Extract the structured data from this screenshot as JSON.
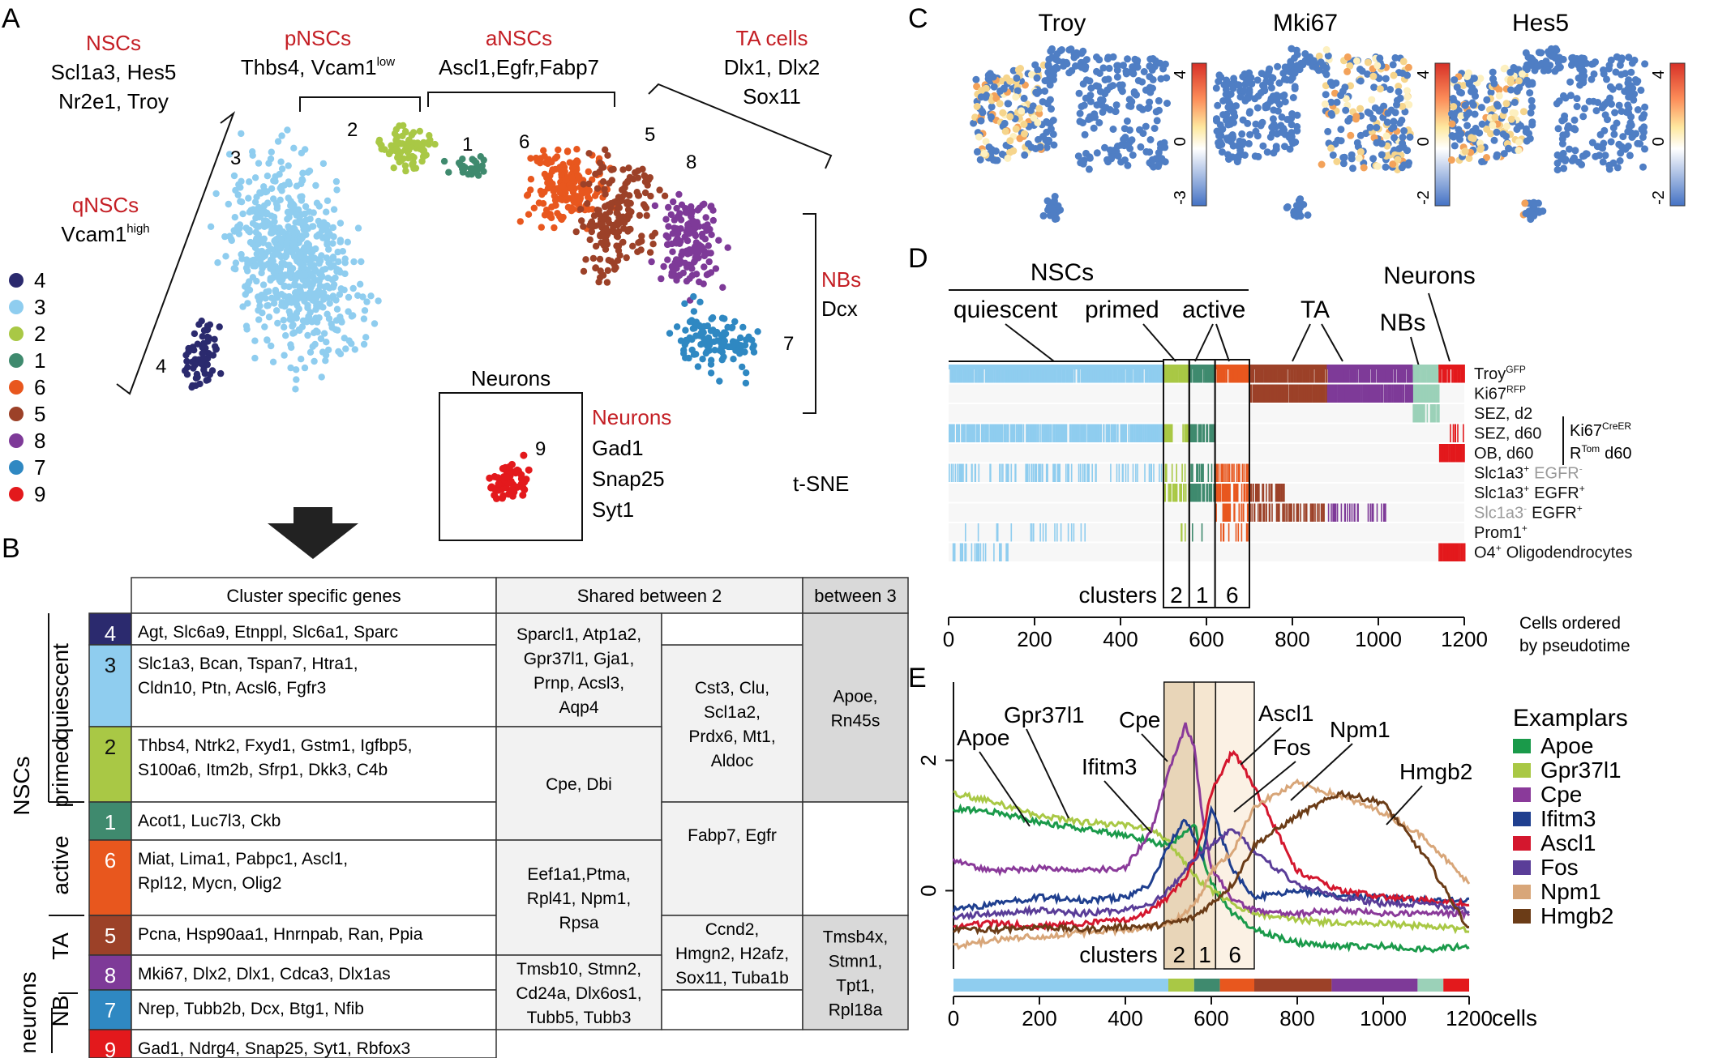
{
  "panels": {
    "A": "A",
    "B": "B",
    "C": "C",
    "D": "D",
    "E": "E"
  },
  "colors": {
    "c4": "#2b2a6e",
    "c3": "#8fcdef",
    "c2": "#a9c845",
    "c1": "#3f8a6e",
    "c6": "#e8571e",
    "c5": "#9c4128",
    "c8": "#7e3a98",
    "c7": "#2f88c2",
    "c9": "#e3191c",
    "red_label": "#c41e24",
    "tsne_blue": "#4472c4"
  },
  "panelA": {
    "cluster_legend": [
      {
        "id": "4",
        "color": "#2b2a6e"
      },
      {
        "id": "3",
        "color": "#8fcdef"
      },
      {
        "id": "2",
        "color": "#a9c845"
      },
      {
        "id": "1",
        "color": "#3f8a6e"
      },
      {
        "id": "6",
        "color": "#e8571e"
      },
      {
        "id": "5",
        "color": "#9c4128"
      },
      {
        "id": "8",
        "color": "#7e3a98"
      },
      {
        "id": "7",
        "color": "#2f88c2"
      },
      {
        "id": "9",
        "color": "#e3191c"
      }
    ],
    "groups": {
      "nscs": {
        "title": "NSCs",
        "genes": [
          "Scl1a3, Hes5",
          "Nr2e1, Troy"
        ]
      },
      "pnscs": {
        "title": "pNSCs",
        "genes": "Thbs4, Vcam1",
        "sup": "low"
      },
      "anscs": {
        "title": "aNSCs",
        "genes": "Ascl1,Egfr,Fabp7"
      },
      "ta": {
        "title": "TA cells",
        "genes": [
          "Dlx1, Dlx2",
          "Sox11"
        ]
      },
      "qnscs": {
        "title": "qNSCs",
        "genes": "Vcam1",
        "sup": "high"
      },
      "nbs": {
        "title": "NBs",
        "genes": "Dcx"
      },
      "neurons": {
        "title": "Neurons",
        "genes": [
          "Gad1",
          "Snap25",
          "Syt1"
        ]
      }
    },
    "inset_title": "Neurons",
    "tsne_label": "t-SNE",
    "cluster_numbers": [
      "3",
      "2",
      "1",
      "6",
      "5",
      "8",
      "4",
      "7",
      "9"
    ]
  },
  "panelB": {
    "headers": {
      "specific": "Cluster specific genes",
      "shared2": "Shared between 2",
      "shared3": "between 3"
    },
    "group_labels": {
      "quiescent": "quiescent",
      "primed": "primed",
      "active": "active",
      "nscs": "NSCs",
      "ta": "TA",
      "nb": "NB",
      "neurons": "neurons"
    },
    "rows": [
      {
        "id": "4",
        "genes": [
          "Agt, Slc6a9, Etnppl, Slc6a1, Sparc"
        ]
      },
      {
        "id": "3",
        "genes": [
          "Slc1a3, Bcan, Tspan7, Htra1,",
          "Cldn10, Ptn, Acsl6, Fgfr3"
        ]
      },
      {
        "id": "2",
        "genes": [
          "Thbs4, Ntrk2, Fxyd1, Gstm1, Igfbp5,",
          "S100a6, Itm2b, Sfrp1, Dkk3, C4b"
        ]
      },
      {
        "id": "1",
        "genes": [
          "Acot1, Luc7l3, Ckb"
        ]
      },
      {
        "id": "6",
        "genes": [
          "Miat, Lima1, Pabpc1, Ascl1,",
          "Rpl12, Mycn, Olig2"
        ]
      },
      {
        "id": "5",
        "genes": [
          "Pcna, Hsp90aa1, Hnrnpab, Ran, Ppia"
        ]
      },
      {
        "id": "8",
        "genes": [
          "Mki67, Dlx2, Dlx1, Cdca3, Dlx1as"
        ]
      },
      {
        "id": "7",
        "genes": [
          "Nrep, Tubb2b, Dcx, Btg1, Nfib"
        ]
      },
      {
        "id": "9",
        "genes": [
          "Gad1, Ndrg4, Snap25, Syt1, Rbfox3"
        ]
      }
    ],
    "shared2_a": [
      "Sparcl1, Atp1a2,",
      "Gpr37l1, Gja1,",
      "Prnp, Acsl3,",
      "Aqp4"
    ],
    "shared2_b": [
      "Cst3, Clu,",
      "Scl1a2,",
      "Prdx6, Mt1,",
      "Aldoc"
    ],
    "shared2_c": [
      "Cpe, Dbi"
    ],
    "shared2_d": [
      "Fabp7, Egfr"
    ],
    "shared2_e": [
      "Eef1a1,Ptma,",
      "Rpl41, Npm1,",
      "Rpsa"
    ],
    "shared2_f": [
      "Ccnd2,",
      "Hmgn2, H2afz,",
      "Sox11, Tuba1b"
    ],
    "shared2_g": [
      "Tmsb10, Stmn2,",
      "Cd24a, Dlx6os1,",
      "Tubb5, Tubb3"
    ],
    "shared3_a": [
      "Apoe,",
      "Rn45s"
    ],
    "shared3_b": [
      "Tmsb4x,",
      "Stmn1,",
      "Tpt1,",
      "Rpl18a"
    ]
  },
  "panelC": {
    "maps": [
      {
        "title": "Troy",
        "ticks": [
          "4",
          "0",
          "-3"
        ]
      },
      {
        "title": "Mki67",
        "ticks": [
          "4",
          "0",
          "-2"
        ]
      },
      {
        "title": "Hes5",
        "ticks": [
          "4",
          "0",
          "-2"
        ]
      }
    ]
  },
  "panelD": {
    "top_labels": {
      "nscs": "NSCs",
      "quiescent": "quiescent",
      "primed": "primed",
      "active": "active",
      "ta": "TA",
      "neurons": "Neurons",
      "nbs": "NBs"
    },
    "tracks": [
      {
        "label": "Troy",
        "sup": "GFP",
        "gray": false
      },
      {
        "label": "Ki67",
        "sup": "RFP",
        "gray": false
      },
      {
        "label": "SEZ, d2",
        "sup": "",
        "gray": false
      },
      {
        "label": "SEZ, d60",
        "sup": "",
        "gray": false
      },
      {
        "label": "OB, d60",
        "sup": "",
        "gray": false
      },
      {
        "label": "Slc1a3",
        "sup": "+",
        "label2": "EGFR",
        "sup2": "-",
        "gray": false,
        "gray2": true
      },
      {
        "label": "Slc1a3",
        "sup": "+",
        "label2": "EGFR",
        "sup2": "+",
        "gray": false,
        "gray2": false
      },
      {
        "label": "Slc1a3",
        "sup": "-",
        "label2": "EGFR",
        "sup2": "+",
        "gray": true,
        "gray2": false
      },
      {
        "label": "Prom1",
        "sup": "+",
        "gray": false
      },
      {
        "label": "O4",
        "sup": "+",
        "label2": "Oligodendrocytes",
        "gray": false
      }
    ],
    "bracket_label_1": "Ki67",
    "bracket_sup_1": "CreER",
    "bracket_label_2": "R",
    "bracket_sup_2": "Tom",
    "bracket_label_3": "d60",
    "clusters_label": "clusters",
    "cluster_boxes": [
      "2",
      "1",
      "6"
    ],
    "axis_ticks": [
      "0",
      "200",
      "400",
      "600",
      "800",
      "1000",
      "1200"
    ],
    "xlabel": [
      "Cells ordered",
      "by pseudotime"
    ]
  },
  "chart_data": {
    "type": "line",
    "title": "",
    "xlabel": "cells",
    "ylabel": "",
    "xlim": [
      0,
      1200
    ],
    "ylim": [
      -1.2,
      3.2
    ],
    "x_ticks": [
      "0",
      "200",
      "400",
      "600",
      "800",
      "1000",
      "1200"
    ],
    "y_ticks": [
      "0",
      "2"
    ],
    "legend_title": "Examplars",
    "legend_position": "right",
    "clusters_label": "clusters",
    "cluster_regions": [
      {
        "label": "2",
        "x0": 490,
        "x1": 560
      },
      {
        "label": "1",
        "x0": 560,
        "x1": 610
      },
      {
        "label": "6",
        "x0": 610,
        "x1": 700
      }
    ],
    "series": [
      {
        "name": "Apoe",
        "color": "#1a9a4a",
        "x": [
          0,
          100,
          200,
          300,
          400,
          460,
          500,
          540,
          560,
          580,
          600,
          650,
          700,
          800,
          900,
          1000,
          1100,
          1200
        ],
        "y": [
          1.25,
          1.2,
          1.05,
          0.95,
          0.85,
          0.75,
          0.7,
          0.9,
          1.05,
          0.5,
          0.1,
          -0.35,
          -0.6,
          -0.8,
          -0.85,
          -0.85,
          -0.9,
          -0.85
        ]
      },
      {
        "name": "Gpr37l1",
        "color": "#a9c845",
        "x": [
          0,
          100,
          200,
          300,
          400,
          460,
          500,
          540,
          560,
          580,
          600,
          650,
          700,
          800,
          900,
          1000,
          1100,
          1200
        ],
        "y": [
          1.5,
          1.35,
          1.15,
          1.05,
          1.0,
          0.95,
          0.75,
          0.4,
          0.25,
          0.1,
          0.0,
          -0.2,
          -0.35,
          -0.45,
          -0.5,
          -0.5,
          -0.55,
          -0.6
        ]
      },
      {
        "name": "Cpe",
        "color": "#8a3a9a",
        "x": [
          0,
          100,
          200,
          300,
          400,
          460,
          500,
          540,
          560,
          580,
          600,
          650,
          700,
          800,
          900,
          1000,
          1100,
          1200
        ],
        "y": [
          0.45,
          0.3,
          0.35,
          0.3,
          0.35,
          0.9,
          1.8,
          2.55,
          2.2,
          1.1,
          0.35,
          -0.15,
          -0.3,
          -0.35,
          -0.3,
          -0.35,
          -0.35,
          -0.35
        ]
      },
      {
        "name": "Ifitm3",
        "color": "#1f3f8f",
        "x": [
          0,
          100,
          200,
          300,
          400,
          460,
          500,
          540,
          560,
          580,
          600,
          650,
          700,
          800,
          900,
          1000,
          1100,
          1200
        ],
        "y": [
          -0.3,
          -0.2,
          -0.1,
          -0.15,
          -0.1,
          0.1,
          0.7,
          1.1,
          0.8,
          0.5,
          1.3,
          0.3,
          -0.1,
          0.0,
          -0.1,
          -0.1,
          -0.15,
          -0.15
        ]
      },
      {
        "name": "Ascl1",
        "color": "#d4172e",
        "x": [
          0,
          100,
          200,
          300,
          400,
          460,
          500,
          540,
          560,
          580,
          600,
          650,
          700,
          800,
          900,
          1000,
          1100,
          1200
        ],
        "y": [
          -0.55,
          -0.5,
          -0.55,
          -0.5,
          -0.45,
          -0.3,
          -0.1,
          0.2,
          0.5,
          0.9,
          1.5,
          2.15,
          1.6,
          0.3,
          0.0,
          -0.1,
          -0.15,
          -0.2
        ]
      },
      {
        "name": "Fos",
        "color": "#5a3d98",
        "x": [
          0,
          100,
          200,
          300,
          400,
          460,
          500,
          540,
          560,
          580,
          600,
          650,
          700,
          800,
          900,
          1000,
          1100,
          1200
        ],
        "y": [
          -0.4,
          -0.35,
          -0.3,
          -0.35,
          -0.3,
          -0.2,
          0.0,
          0.3,
          0.5,
          0.6,
          0.7,
          0.95,
          0.6,
          0.1,
          -0.1,
          -0.2,
          -0.2,
          -0.3
        ]
      },
      {
        "name": "Npm1",
        "color": "#d8a679",
        "x": [
          0,
          100,
          200,
          300,
          400,
          460,
          500,
          540,
          560,
          580,
          600,
          650,
          700,
          800,
          900,
          1000,
          1100,
          1200
        ],
        "y": [
          -0.85,
          -0.75,
          -0.7,
          -0.65,
          -0.6,
          -0.55,
          -0.5,
          -0.35,
          -0.2,
          0.0,
          0.3,
          0.6,
          1.3,
          1.65,
          1.45,
          1.2,
          0.8,
          0.1
        ]
      },
      {
        "name": "Hmgb2",
        "color": "#6b3c17",
        "x": [
          0,
          100,
          200,
          300,
          400,
          460,
          500,
          540,
          560,
          580,
          600,
          650,
          700,
          800,
          900,
          1000,
          1100,
          1200
        ],
        "y": [
          -0.6,
          -0.6,
          -0.55,
          -0.6,
          -0.55,
          -0.55,
          -0.5,
          -0.45,
          -0.4,
          -0.3,
          -0.2,
          0.1,
          0.7,
          1.15,
          1.5,
          1.35,
          0.5,
          -0.6
        ]
      }
    ]
  }
}
